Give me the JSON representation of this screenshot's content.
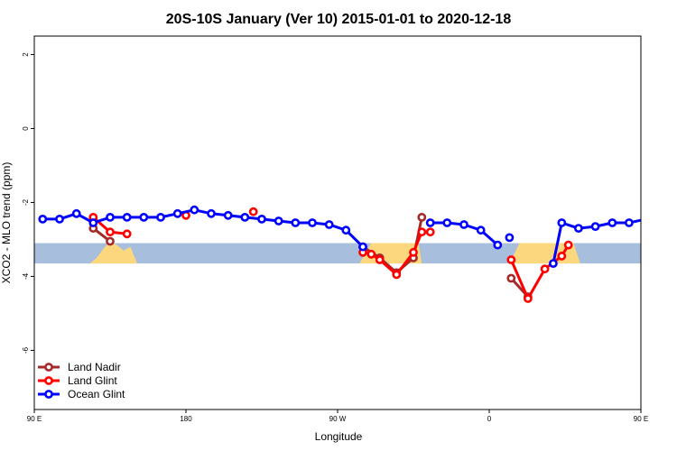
{
  "chart_data": {
    "type": "line",
    "title": "20S-10S January (Ver 10)   2015-01-01 to 2020-12-18",
    "xlabel": "Longitude",
    "ylabel": "XCO2 - MLO trend (ppm)",
    "xlim": [
      90,
      450
    ],
    "ylim": [
      -7.6,
      2.5
    ],
    "x_ticks": [
      {
        "value": 90,
        "label": "90 E"
      },
      {
        "value": 180,
        "label": "180"
      },
      {
        "value": 270,
        "label": "90 W"
      },
      {
        "value": 360,
        "label": "0"
      },
      {
        "value": 450,
        "label": "90 E"
      },
      {
        "value": 540,
        "label": "180"
      }
    ],
    "y_ticks": [
      {
        "value": 2,
        "label": "2"
      },
      {
        "value": 0,
        "label": "0"
      },
      {
        "value": -2,
        "label": "-2"
      },
      {
        "value": -4,
        "label": "-4"
      },
      {
        "value": -6,
        "label": "-6"
      }
    ],
    "background_band": {
      "y_range": [
        -3.1,
        -3.65
      ],
      "color": "#a8bedd",
      "land_color": "#fdd77d"
    },
    "land_regions": [
      {
        "x": [
          123,
          127,
          131,
          135,
          139,
          143,
          147,
          151
        ],
        "top": [
          -3.65,
          -3.5,
          -3.25,
          -3.05,
          -3.15,
          -3.3,
          -3.2,
          -3.65
        ]
      },
      {
        "x": [
          283,
          290,
          300,
          310,
          318,
          320
        ],
        "top": [
          -3.65,
          -3.1,
          -3.1,
          -3.1,
          -3.1,
          -3.65
        ]
      },
      {
        "x": [
          372,
          378,
          390,
          400,
          410,
          414
        ],
        "top": [
          -3.65,
          -3.1,
          -3.1,
          -3.1,
          -3.1,
          -3.65
        ]
      },
      {
        "x": [
          513,
          517,
          521,
          525,
          529,
          533,
          537,
          541
        ],
        "top": [
          -3.65,
          -3.5,
          -3.25,
          -3.05,
          -3.15,
          -3.3,
          -3.2,
          -3.65
        ]
      }
    ],
    "series": [
      {
        "name": "Land Nadir",
        "color": "#a52a2a",
        "segments": [
          {
            "x": [
              125,
              135
            ],
            "y": [
              -2.7,
              -3.05
            ]
          },
          {
            "x": [
              285,
              295,
              305,
              315,
              320
            ],
            "y": [
              -3.2,
              -3.5,
              -3.9,
              -3.5,
              -2.4
            ]
          },
          {
            "x": [
              373,
              383
            ],
            "y": [
              -4.05,
              -4.55
            ]
          },
          {
            "x": [
              515,
              525
            ],
            "y": [
              -2.7,
              -3.05
            ]
          }
        ]
      },
      {
        "name": "Land Glint",
        "color": "#ff0000",
        "segments": [
          {
            "x": [
              125,
              135,
              145
            ],
            "y": [
              -2.4,
              -2.8,
              -2.85
            ]
          },
          {
            "x": [
              180
            ],
            "y": [
              -2.35
            ]
          },
          {
            "x": [
              220
            ],
            "y": [
              -2.25
            ]
          },
          {
            "x": [
              285,
              290,
              295,
              305,
              315,
              320,
              325
            ],
            "y": [
              -3.35,
              -3.4,
              -3.55,
              -3.95,
              -3.35,
              -2.8,
              -2.8
            ]
          },
          {
            "x": [
              373,
              383,
              393,
              403,
              407
            ],
            "y": [
              -3.55,
              -4.6,
              -3.8,
              -3.45,
              -3.15
            ]
          },
          {
            "x": [
              515,
              525,
              535
            ],
            "y": [
              -2.4,
              -2.8,
              -2.85
            ]
          }
        ]
      },
      {
        "name": "Ocean Glint",
        "color": "#0000ff",
        "segments": [
          {
            "x": [
              95,
              105,
              115,
              125,
              135,
              145,
              155,
              165,
              175,
              185,
              195,
              205,
              215,
              225,
              235,
              245,
              255,
              265,
              275,
              285
            ],
            "y": [
              -2.45,
              -2.45,
              -2.3,
              -2.55,
              -2.4,
              -2.4,
              -2.4,
              -2.4,
              -2.3,
              -2.2,
              -2.3,
              -2.35,
              -2.4,
              -2.45,
              -2.5,
              -2.55,
              -2.55,
              -2.6,
              -2.75,
              -3.2
            ]
          },
          {
            "x": [
              325,
              335,
              345,
              355,
              365
            ],
            "y": [
              -2.55,
              -2.55,
              -2.6,
              -2.75,
              -3.15
            ]
          },
          {
            "x": [
              372
            ],
            "y": [
              -2.95
            ]
          },
          {
            "x": [
              398,
              403,
              413,
              423,
              433,
              443,
              453,
              463,
              473,
              483,
              493,
              503,
              513,
              523,
              533,
              543,
              553,
              563,
              573,
              583,
              593
            ],
            "y": [
              -3.65,
              -2.55,
              -2.7,
              -2.65,
              -2.55,
              -2.55,
              -2.45,
              -2.4,
              -2.3,
              -2.55,
              -2.4,
              -2.4,
              -2.4,
              -2.4,
              -2.4,
              -2.4,
              -2.35,
              -2.3,
              -2.3,
              -2.3,
              -2.3
            ]
          }
        ]
      }
    ],
    "legend": {
      "placement": "bottom-left",
      "entries": [
        "Land Nadir",
        "Land Glint",
        "Ocean Glint"
      ]
    }
  }
}
